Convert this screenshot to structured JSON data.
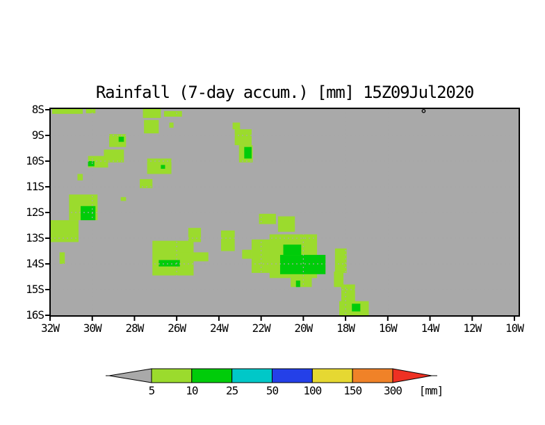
{
  "chart_data": {
    "type": "heatmap",
    "title": "Rainfall (7-day accum.) [mm] 15Z09Jul2020",
    "background_color": "#a9a9a9",
    "x_axis": {
      "labels": [
        "32W",
        "30W",
        "28W",
        "26W",
        "24W",
        "22W",
        "20W",
        "18W",
        "16W",
        "14W",
        "12W",
        "10W"
      ],
      "lons_w": [
        32,
        30,
        28,
        26,
        24,
        22,
        20,
        18,
        16,
        14,
        12,
        10
      ]
    },
    "y_axis": {
      "labels": [
        "8S",
        "9S",
        "10S",
        "11S",
        "12S",
        "13S",
        "14S",
        "15S",
        "16S"
      ],
      "lats_s": [
        8,
        9,
        10,
        11,
        12,
        13,
        14,
        15,
        16
      ]
    },
    "grid": {
      "style": "dotted",
      "color": "#a9a9a9",
      "lon_step": 2,
      "lat_step": 1
    },
    "colorbar": {
      "boundary_labels": [
        "5",
        "10",
        "25",
        "50",
        "100",
        "150",
        "300"
      ],
      "unit_label": "[mm]",
      "below_color": "#a9a9a9",
      "segment_colors": [
        "#9bdb2d",
        "#00cc0a",
        "#00c8c8",
        "#2440e8",
        "#e6d832",
        "#f08228"
      ],
      "above_color": "#ee3123"
    },
    "station_marker": {
      "lon_w": 14.3,
      "lat_s": 8.05,
      "shape": "circle"
    },
    "rain_cells": {
      "cell_format": "[lonW_west, latS_north, lonW_east, latS_south, level] ; level 1 = 5-10 mm, level 2 = 10-25 mm",
      "cells": [
        [
          31.9,
          7.95,
          30.45,
          8.16,
          1
        ],
        [
          30.3,
          7.95,
          29.85,
          8.14,
          1
        ],
        [
          27.6,
          7.95,
          26.75,
          8.32,
          1
        ],
        [
          26.6,
          8.05,
          25.75,
          8.27,
          1
        ],
        [
          27.55,
          8.4,
          26.85,
          8.92,
          1
        ],
        [
          26.35,
          8.5,
          26.15,
          8.7,
          1
        ],
        [
          29.2,
          8.95,
          28.4,
          9.45,
          1
        ],
        [
          28.75,
          9.05,
          28.5,
          9.25,
          2
        ],
        [
          23.35,
          8.5,
          23.0,
          8.76,
          1
        ],
        [
          23.25,
          8.76,
          22.45,
          9.38,
          1
        ],
        [
          23.05,
          9.38,
          22.4,
          10.05,
          1
        ],
        [
          22.8,
          9.45,
          22.45,
          9.9,
          2
        ],
        [
          29.45,
          9.55,
          28.5,
          10.05,
          1
        ],
        [
          30.2,
          9.8,
          29.25,
          10.25,
          1
        ],
        [
          30.2,
          10.0,
          29.9,
          10.2,
          2
        ],
        [
          30.7,
          10.5,
          30.45,
          10.75,
          1
        ],
        [
          27.4,
          9.9,
          26.25,
          10.5,
          1
        ],
        [
          26.75,
          10.15,
          26.55,
          10.3,
          2
        ],
        [
          27.75,
          10.7,
          27.15,
          11.05,
          1
        ],
        [
          28.65,
          11.4,
          28.4,
          11.55,
          1
        ],
        [
          31.1,
          11.3,
          29.75,
          12.3,
          1
        ],
        [
          32.0,
          12.3,
          30.65,
          13.15,
          1
        ],
        [
          30.55,
          11.75,
          29.85,
          12.3,
          2
        ],
        [
          31.55,
          13.55,
          31.3,
          14.0,
          1
        ],
        [
          27.15,
          13.1,
          25.2,
          14.45,
          1
        ],
        [
          25.9,
          13.55,
          24.5,
          13.9,
          1
        ],
        [
          25.45,
          12.6,
          24.85,
          13.15,
          1
        ],
        [
          26.85,
          13.85,
          25.85,
          14.1,
          2
        ],
        [
          23.9,
          12.7,
          23.25,
          13.5,
          1
        ],
        [
          22.1,
          12.05,
          21.3,
          12.45,
          1
        ],
        [
          21.2,
          12.15,
          20.4,
          12.75,
          1
        ],
        [
          22.9,
          13.45,
          22.45,
          13.8,
          1
        ],
        [
          22.45,
          13.05,
          21.0,
          14.35,
          1
        ],
        [
          21.6,
          12.85,
          19.35,
          14.55,
          1
        ],
        [
          20.6,
          14.4,
          19.6,
          14.9,
          1
        ],
        [
          20.95,
          13.25,
          20.1,
          13.65,
          2
        ],
        [
          21.1,
          13.65,
          18.95,
          14.4,
          2
        ],
        [
          20.35,
          14.65,
          20.15,
          14.9,
          2
        ],
        [
          18.5,
          13.4,
          17.95,
          14.35,
          1
        ],
        [
          18.55,
          14.3,
          18.1,
          14.9,
          1
        ],
        [
          18.2,
          14.8,
          17.55,
          15.55,
          1
        ],
        [
          18.3,
          15.45,
          16.9,
          16.02,
          1
        ],
        [
          17.7,
          15.55,
          17.3,
          15.85,
          2
        ]
      ]
    }
  }
}
